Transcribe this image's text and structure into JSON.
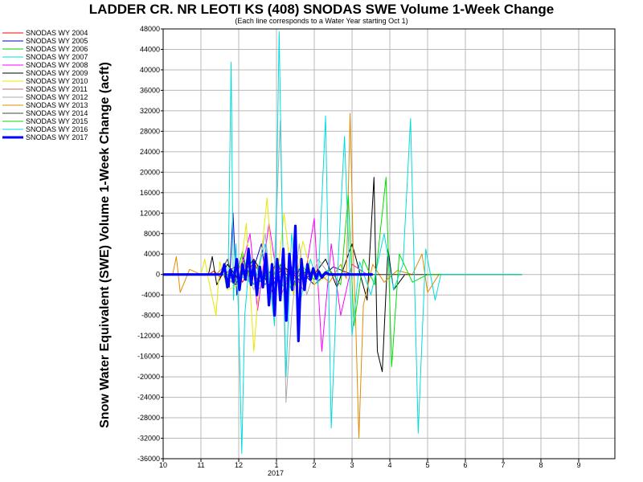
{
  "chart_data": {
    "type": "line",
    "title": "LADDER CR. NR LEOTI KS (408) SNODAS SWE Volume 1-Week Change",
    "subtitle": "(Each line corresponds to a Water Year starting Oct 1)",
    "ylabel": "Snow Water Equivalent (SWE) Volume 1-Week Change (acft)",
    "xlabel": "",
    "ylim": [
      -36000,
      48000
    ],
    "y_ticks": [
      48000,
      44000,
      40000,
      36000,
      32000,
      28000,
      24000,
      20000,
      16000,
      12000,
      8000,
      4000,
      0,
      -4000,
      -8000,
      -12000,
      -16000,
      -20000,
      -24000,
      -28000,
      -32000,
      -36000
    ],
    "y_tick_labels": [
      "48000",
      "44000",
      "40000",
      "36000",
      "32000",
      "28000",
      "24000",
      "20000",
      "16000",
      "12000",
      "8000",
      "4000",
      "0",
      "-4000",
      "-8000",
      "-12000",
      "-16000",
      "-20000",
      "-24000",
      "-28000",
      "-32000",
      "-36000"
    ],
    "x_tick_labels": [
      "10",
      "11",
      "12",
      "1",
      "2",
      "3",
      "4",
      "5",
      "6",
      "7",
      "8",
      "9"
    ],
    "x_year_label": "2017",
    "legend_placement": "top-left, outside plot",
    "series": [
      {
        "name": "SNODAS WY 2004",
        "color": "#ff0000",
        "points": [
          [
            0.0,
            0
          ],
          [
            1.2,
            0
          ],
          [
            1.35,
            700
          ],
          [
            1.5,
            -500
          ],
          [
            1.9,
            1500
          ],
          [
            2.1,
            -1500
          ],
          [
            2.4,
            2500
          ],
          [
            2.7,
            -2000
          ],
          [
            3.0,
            1800
          ],
          [
            3.3,
            -900
          ],
          [
            3.6,
            600
          ],
          [
            4.2,
            0
          ],
          [
            9.5,
            0
          ]
        ]
      },
      {
        "name": "SNODAS WY 2005",
        "color": "#0000cc",
        "points": [
          [
            0.0,
            0
          ],
          [
            1.6,
            0
          ],
          [
            1.75,
            -2500
          ],
          [
            1.85,
            12000
          ],
          [
            1.95,
            -4000
          ],
          [
            2.1,
            3500
          ],
          [
            2.3,
            -1000
          ],
          [
            2.6,
            6000
          ],
          [
            2.8,
            -5000
          ],
          [
            3.1,
            2000
          ],
          [
            3.4,
            -3000
          ],
          [
            3.6,
            1000
          ],
          [
            4.0,
            -2000
          ],
          [
            4.5,
            1500
          ],
          [
            5.0,
            0
          ],
          [
            9.5,
            0
          ]
        ]
      },
      {
        "name": "SNODAS WY 2006",
        "color": "#00cc00",
        "points": [
          [
            0.0,
            0
          ],
          [
            1.7,
            0
          ],
          [
            1.9,
            -1500
          ],
          [
            2.1,
            4500
          ],
          [
            2.3,
            -2000
          ],
          [
            2.6,
            -1200
          ],
          [
            2.9,
            1000
          ],
          [
            3.2,
            -2500
          ],
          [
            3.5,
            800
          ],
          [
            4.0,
            0
          ],
          [
            9.5,
            0
          ]
        ]
      },
      {
        "name": "SNODAS WY 2007",
        "color": "#00dddd",
        "points": [
          [
            0.0,
            0
          ],
          [
            1.6,
            0
          ],
          [
            1.72,
            -1000
          ],
          [
            1.8,
            41500
          ],
          [
            1.86,
            -5000
          ],
          [
            1.93,
            6000
          ],
          [
            2.0,
            -9000
          ],
          [
            2.08,
            -35000
          ],
          [
            2.16,
            -8000
          ],
          [
            2.3,
            4000
          ],
          [
            2.5,
            -3000
          ],
          [
            2.75,
            -1500
          ],
          [
            3.0,
            2500
          ],
          [
            3.3,
            -1500
          ],
          [
            3.6,
            1200
          ],
          [
            4.0,
            0
          ],
          [
            9.5,
            0
          ]
        ]
      },
      {
        "name": "SNODAS WY 2008",
        "color": "#ff00ff",
        "points": [
          [
            0.0,
            0
          ],
          [
            1.8,
            0
          ],
          [
            2.0,
            -1000
          ],
          [
            2.3,
            8000
          ],
          [
            2.5,
            -7000
          ],
          [
            2.8,
            10000
          ],
          [
            3.1,
            -4500
          ],
          [
            3.4,
            1500
          ],
          [
            3.7,
            -3000
          ],
          [
            4.0,
            11000
          ],
          [
            4.2,
            -15000
          ],
          [
            4.45,
            6000
          ],
          [
            4.7,
            -8000
          ],
          [
            5.0,
            2000
          ],
          [
            5.4,
            0
          ],
          [
            9.5,
            0
          ]
        ]
      },
      {
        "name": "SNODAS WY 2009",
        "color": "#000000",
        "points": [
          [
            0.0,
            0
          ],
          [
            1.2,
            0
          ],
          [
            1.3,
            3500
          ],
          [
            1.42,
            -2000
          ],
          [
            1.7,
            2000
          ],
          [
            2.0,
            -1000
          ],
          [
            2.4,
            3000
          ],
          [
            2.8,
            -2000
          ],
          [
            3.2,
            1500
          ],
          [
            3.6,
            -1000
          ],
          [
            4.0,
            0
          ],
          [
            4.3,
            3000
          ],
          [
            4.6,
            -2500
          ],
          [
            5.0,
            6000
          ],
          [
            5.4,
            -5000
          ],
          [
            5.58,
            19000
          ],
          [
            5.67,
            -15000
          ],
          [
            5.8,
            -19000
          ],
          [
            5.95,
            5000
          ],
          [
            6.1,
            -3000
          ],
          [
            6.4,
            0
          ],
          [
            9.5,
            0
          ]
        ]
      },
      {
        "name": "SNODAS WY 2010",
        "color": "#e8e800",
        "points": [
          [
            0.0,
            0
          ],
          [
            1.0,
            0
          ],
          [
            1.1,
            3000
          ],
          [
            1.2,
            -1000
          ],
          [
            1.4,
            -8000
          ],
          [
            1.5,
            2500
          ],
          [
            1.7,
            -3000
          ],
          [
            2.0,
            -2000
          ],
          [
            2.2,
            10000
          ],
          [
            2.4,
            -15000
          ],
          [
            2.6,
            4000
          ],
          [
            2.75,
            15000
          ],
          [
            2.95,
            -6000
          ],
          [
            3.2,
            12000
          ],
          [
            3.45,
            -4000
          ],
          [
            3.7,
            6500
          ],
          [
            4.0,
            -2000
          ],
          [
            4.4,
            0
          ],
          [
            9.5,
            0
          ]
        ]
      },
      {
        "name": "SNODAS WY 2011",
        "color": "#c07070",
        "points": [
          [
            0.0,
            0
          ],
          [
            1.4,
            0
          ],
          [
            1.6,
            1500
          ],
          [
            1.8,
            -1500
          ],
          [
            2.1,
            2500
          ],
          [
            2.4,
            -2000
          ],
          [
            2.7,
            1500
          ],
          [
            3.0,
            -1000
          ],
          [
            3.3,
            800
          ],
          [
            3.7,
            0
          ],
          [
            9.5,
            0
          ]
        ]
      },
      {
        "name": "SNODAS WY 2012",
        "color": "#aaaaaa",
        "points": [
          [
            0.0,
            0
          ],
          [
            1.9,
            0
          ],
          [
            2.1,
            2000
          ],
          [
            2.4,
            -3000
          ],
          [
            2.7,
            8000
          ],
          [
            2.9,
            -6000
          ],
          [
            3.1,
            30000
          ],
          [
            3.25,
            -25000
          ],
          [
            3.4,
            -8000
          ],
          [
            3.6,
            6000
          ],
          [
            3.8,
            -4000
          ],
          [
            4.1,
            3000
          ],
          [
            4.4,
            0
          ],
          [
            9.5,
            0
          ]
        ]
      },
      {
        "name": "SNODAS WY 2013",
        "color": "#e08c00",
        "points": [
          [
            0.0,
            0
          ],
          [
            0.25,
            0
          ],
          [
            0.35,
            3500
          ],
          [
            0.45,
            -3500
          ],
          [
            0.7,
            1000
          ],
          [
            1.0,
            0
          ],
          [
            3.0,
            0
          ],
          [
            3.2,
            1500
          ],
          [
            3.5,
            -2000
          ],
          [
            4.0,
            1000
          ],
          [
            4.4,
            -1500
          ],
          [
            4.7,
            2000
          ],
          [
            4.85,
            -800
          ],
          [
            4.95,
            31500
          ],
          [
            5.03,
            5000
          ],
          [
            5.1,
            -10000
          ],
          [
            5.18,
            -32000
          ],
          [
            5.3,
            -6000
          ],
          [
            5.55,
            2000
          ],
          [
            5.85,
            -1500
          ],
          [
            6.2,
            800
          ],
          [
            6.6,
            0
          ],
          [
            6.85,
            4000
          ],
          [
            7.0,
            -3500
          ],
          [
            7.3,
            0
          ],
          [
            9.5,
            0
          ]
        ]
      },
      {
        "name": "SNODAS WY 2014",
        "color": "#444444",
        "points": [
          [
            0.0,
            0
          ],
          [
            1.5,
            0
          ],
          [
            1.7,
            3000
          ],
          [
            1.9,
            -2000
          ],
          [
            2.2,
            1000
          ],
          [
            2.6,
            -1500
          ],
          [
            3.0,
            2000
          ],
          [
            3.4,
            -1000
          ],
          [
            3.8,
            500
          ],
          [
            4.2,
            0
          ],
          [
            9.5,
            0
          ]
        ]
      },
      {
        "name": "SNODAS WY 2015",
        "color": "#00e000",
        "points": [
          [
            0.0,
            0
          ],
          [
            2.2,
            0
          ],
          [
            2.5,
            1500
          ],
          [
            2.8,
            -1500
          ],
          [
            3.1,
            2000
          ],
          [
            3.4,
            -3000
          ],
          [
            3.7,
            1500
          ],
          [
            4.0,
            -1000
          ],
          [
            4.4,
            1000
          ],
          [
            4.7,
            -2000
          ],
          [
            4.9,
            15500
          ],
          [
            5.05,
            -10000
          ],
          [
            5.3,
            3000
          ],
          [
            5.6,
            -2000
          ],
          [
            5.9,
            19000
          ],
          [
            6.05,
            -18000
          ],
          [
            6.25,
            4000
          ],
          [
            6.6,
            -1500
          ],
          [
            7.0,
            0
          ],
          [
            9.5,
            0
          ]
        ]
      },
      {
        "name": "SNODAS WY 2016",
        "color": "#00dddd",
        "points": [
          [
            0.0,
            0
          ],
          [
            2.0,
            0
          ],
          [
            2.4,
            -2000
          ],
          [
            2.7,
            6000
          ],
          [
            2.95,
            -10000
          ],
          [
            3.07,
            47500
          ],
          [
            3.15,
            12000
          ],
          [
            3.25,
            -20000
          ],
          [
            3.4,
            8000
          ],
          [
            3.6,
            -6000
          ],
          [
            3.9,
            3000
          ],
          [
            4.1,
            -2000
          ],
          [
            4.3,
            31000
          ],
          [
            4.45,
            -30000
          ],
          [
            4.6,
            -2000
          ],
          [
            4.8,
            27000
          ],
          [
            5.0,
            -12000
          ],
          [
            5.2,
            2500
          ],
          [
            5.5,
            -4000
          ],
          [
            5.85,
            8000
          ],
          [
            6.1,
            -3000
          ],
          [
            6.35,
            2000
          ],
          [
            6.55,
            30500
          ],
          [
            6.75,
            -31000
          ],
          [
            6.95,
            5000
          ],
          [
            7.2,
            -5000
          ],
          [
            7.35,
            0
          ],
          [
            9.5,
            0
          ]
        ]
      },
      {
        "name": "SNODAS WY 2017",
        "color": "#0000ff",
        "thick": true,
        "points": [
          [
            0.0,
            0
          ],
          [
            1.55,
            0
          ],
          [
            1.62,
            2000
          ],
          [
            1.7,
            -2500
          ],
          [
            1.78,
            1000
          ],
          [
            1.86,
            -1500
          ],
          [
            1.95,
            3000
          ],
          [
            2.02,
            -3000
          ],
          [
            2.1,
            2000
          ],
          [
            2.18,
            -1000
          ],
          [
            2.26,
            5000
          ],
          [
            2.33,
            -2000
          ],
          [
            2.4,
            2500
          ],
          [
            2.48,
            -4000
          ],
          [
            2.56,
            1500
          ],
          [
            2.64,
            -2500
          ],
          [
            2.72,
            4000
          ],
          [
            2.8,
            -6000
          ],
          [
            2.88,
            2000
          ],
          [
            2.95,
            -8000
          ],
          [
            3.02,
            3000
          ],
          [
            3.1,
            -5000
          ],
          [
            3.18,
            5000
          ],
          [
            3.26,
            -9000
          ],
          [
            3.34,
            4000
          ],
          [
            3.42,
            -3000
          ],
          [
            3.5,
            9500
          ],
          [
            3.58,
            -13000
          ],
          [
            3.66,
            3000
          ],
          [
            3.74,
            -3000
          ],
          [
            3.82,
            2000
          ],
          [
            3.9,
            -1000
          ],
          [
            3.97,
            1200
          ],
          [
            4.05,
            -800
          ],
          [
            4.12,
            600
          ],
          [
            4.2,
            -600
          ],
          [
            4.3,
            400
          ],
          [
            4.4,
            0
          ],
          [
            5.55,
            0
          ]
        ]
      }
    ]
  }
}
